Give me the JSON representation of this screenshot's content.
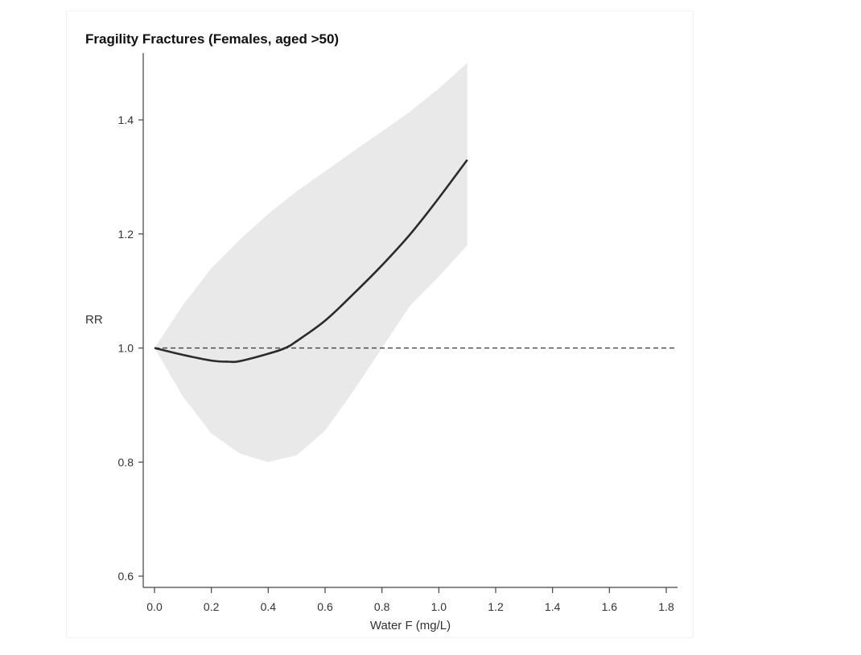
{
  "chart_data": {
    "type": "line",
    "title": "Fragility Fractures (Females, aged >50)",
    "xlabel": "Water F (mg/L)",
    "ylabel": "RR",
    "xlim": [
      -0.04,
      1.84
    ],
    "ylim": [
      0.58,
      1.5
    ],
    "x_ticks": [
      0.0,
      0.2,
      0.4,
      0.6,
      0.8,
      1.0,
      1.2,
      1.4,
      1.6,
      1.8
    ],
    "x_tick_labels": [
      "0.0",
      "0.2",
      "0.4",
      "0.6",
      "0.8",
      "1.0",
      "1.2",
      "1.4",
      "1.6",
      "1.8"
    ],
    "y_ticks": [
      0.6,
      0.8,
      1.0,
      1.2,
      1.4
    ],
    "y_tick_labels": [
      "0.6",
      "0.8",
      "1.0",
      "1.2",
      "1.4"
    ],
    "reference_line": {
      "y": 1.0,
      "style": "dashed",
      "x_end": 1.84
    },
    "series": [
      {
        "type": "line",
        "x": [
          0.0,
          0.1,
          0.2,
          0.26,
          0.3,
          0.4,
          0.46,
          0.5,
          0.6,
          0.7,
          0.8,
          0.9,
          1.0,
          1.1
        ],
        "y": [
          1.0,
          0.988,
          0.978,
          0.976,
          0.977,
          0.99,
          1.0,
          1.012,
          1.048,
          1.095,
          1.145,
          1.2,
          1.263,
          1.33
        ],
        "color": "#2b2b2b"
      }
    ],
    "confidence_band": {
      "x": [
        0.0,
        0.1,
        0.2,
        0.3,
        0.4,
        0.5,
        0.6,
        0.7,
        0.8,
        0.9,
        1.0,
        1.1
      ],
      "upper": [
        1.0,
        1.075,
        1.14,
        1.19,
        1.235,
        1.275,
        1.31,
        1.345,
        1.38,
        1.415,
        1.455,
        1.5
      ],
      "lower": [
        1.0,
        0.915,
        0.85,
        0.815,
        0.8,
        0.812,
        0.855,
        0.925,
        1.0,
        1.075,
        1.125,
        1.18
      ],
      "color": "#e9e9e9"
    },
    "grid": false,
    "legend": "none"
  }
}
